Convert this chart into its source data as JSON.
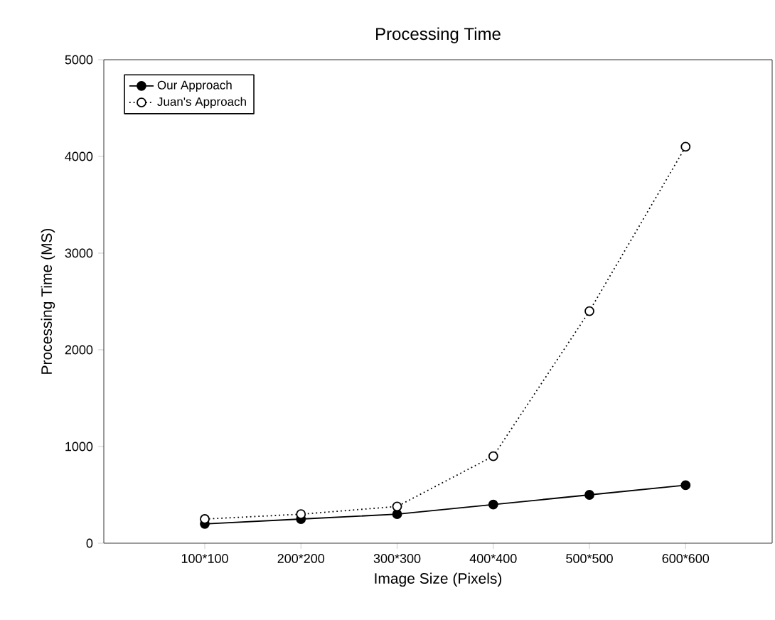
{
  "chart_data": {
    "type": "line",
    "title": "Processing Time",
    "xlabel": "Image Size (Pixels)",
    "ylabel": "Processing Time (MS)",
    "categories": [
      "100*100",
      "200*200",
      "300*300",
      "400*400",
      "500*500",
      "600*600"
    ],
    "ylim": [
      0,
      5000
    ],
    "yticks": [
      0,
      1000,
      2000,
      3000,
      4000,
      5000
    ],
    "grid": false,
    "legend": "top left",
    "marker": "circle",
    "series": [
      {
        "name": "Our Approach",
        "color": "#000000",
        "line_style": "solid",
        "values": [
          200,
          250,
          300,
          400,
          500,
          600
        ]
      },
      {
        "name": "Juan's Approach",
        "color": "#000000",
        "line_style": "dotted",
        "values": [
          250,
          300,
          380,
          900,
          2400,
          4100
        ]
      }
    ]
  }
}
